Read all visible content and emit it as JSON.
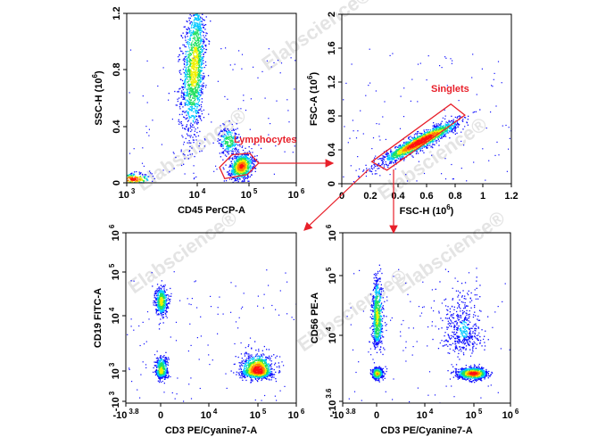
{
  "watermark": "Elabscience®",
  "colors": {
    "gate": "#e8202a",
    "density": [
      "#1010ff",
      "#00c8ff",
      "#20e060",
      "#f0f000",
      "#ff8000",
      "#ff1010"
    ]
  },
  "chart_data": [
    {
      "type": "scatter",
      "xlabel": "CD45 PerCP-A",
      "xlabel_exp": "",
      "xlabel_end": "",
      "ylabel": "SSC-H  (10",
      "ylabel_exp": "6",
      "ylabel_end": ")",
      "xscale": "log",
      "yscale": "linear",
      "xlim": [
        1000,
        1000000
      ],
      "ylim": [
        0,
        1.2
      ],
      "xticks": [
        {
          "value": 1000,
          "base": "10",
          "exp": "3"
        },
        {
          "value": 10000,
          "base": "10",
          "exp": "4"
        },
        {
          "value": 100000,
          "base": "10",
          "exp": "5"
        },
        {
          "value": 1000000,
          "base": "10",
          "exp": "6"
        }
      ],
      "yticks": [
        {
          "value": 0,
          "base": "0",
          "exp": ""
        },
        {
          "value": 0.4,
          "base": "0.4",
          "exp": ""
        },
        {
          "value": 0.8,
          "base": "0.8",
          "exp": ""
        },
        {
          "value": 1.2,
          "base": "1.2",
          "exp": ""
        }
      ],
      "populations": [
        {
          "x": 9000,
          "y": 0.82
        },
        {
          "x": 40000,
          "y": 0.3
        },
        {
          "x": 70000,
          "y": 0.12
        },
        {
          "x": 1200,
          "y": 0.03
        }
      ],
      "gate": {
        "label": "Lymphocytes",
        "polygon": [
          [
            27000,
            0.11
          ],
          [
            47000,
            0.2
          ],
          [
            104000,
            0.21
          ],
          [
            160000,
            0.14
          ],
          [
            93000,
            0.06
          ],
          [
            34000,
            0.03
          ]
        ]
      }
    },
    {
      "type": "scatter",
      "xlabel": "FSC-H  (10",
      "xlabel_exp": "6",
      "xlabel_end": ")",
      "ylabel": "FSC-A  (10",
      "ylabel_exp": "6",
      "ylabel_end": ")",
      "xscale": "linear",
      "yscale": "linear",
      "xlim": [
        0,
        1.2
      ],
      "ylim": [
        0,
        2
      ],
      "xticks": [
        {
          "value": 0,
          "base": "0",
          "exp": ""
        },
        {
          "value": 0.2,
          "base": "0.2",
          "exp": ""
        },
        {
          "value": 0.4,
          "base": "0.4",
          "exp": ""
        },
        {
          "value": 0.6,
          "base": "0.6",
          "exp": ""
        },
        {
          "value": 0.8,
          "base": "0.8",
          "exp": ""
        },
        {
          "value": 1,
          "base": "1",
          "exp": ""
        },
        {
          "value": 1.2,
          "base": "1.2",
          "exp": ""
        }
      ],
      "yticks": [
        {
          "value": 0,
          "base": "0",
          "exp": ""
        },
        {
          "value": 0.4,
          "base": "0.4",
          "exp": ""
        },
        {
          "value": 0.8,
          "base": "0.8",
          "exp": ""
        },
        {
          "value": 1.2,
          "base": "1.2",
          "exp": ""
        },
        {
          "value": 1.6,
          "base": "1.6",
          "exp": ""
        },
        {
          "value": 2,
          "base": "2",
          "exp": ""
        }
      ],
      "populations": [
        {
          "x": 0.55,
          "y": 0.5
        }
      ],
      "gate": {
        "label": "Singlets",
        "polygon": [
          [
            0.21,
            0.26
          ],
          [
            0.77,
            0.94
          ],
          [
            0.87,
            0.81
          ],
          [
            0.32,
            0.16
          ]
        ]
      }
    },
    {
      "type": "scatter",
      "xlabel": "CD3 PE/Cyanine7-A",
      "xlabel_exp": "",
      "xlabel_end": "",
      "ylabel": "CD19 FITC-A",
      "ylabel_exp": "",
      "ylabel_end": "",
      "xscale": "logicle",
      "yscale": "logicle",
      "xlim": [
        -6310,
        1000000
      ],
      "ylim": [
        -1000,
        1000000
      ],
      "xticks": [
        {
          "value": -6310,
          "base": "-10",
          "exp": "3.8"
        },
        {
          "value": 0,
          "base": "0",
          "exp": ""
        },
        {
          "value": 10000,
          "base": "10",
          "exp": "4"
        },
        {
          "value": 100000,
          "base": "10",
          "exp": "5"
        },
        {
          "value": 1000000,
          "base": "10",
          "exp": "6"
        }
      ],
      "yticks": [
        {
          "value": -1000,
          "base": "-10",
          "exp": "3"
        },
        {
          "value": 1000,
          "base": "10",
          "exp": "3"
        },
        {
          "value": 10000,
          "base": "10",
          "exp": "4"
        },
        {
          "value": 100000,
          "base": "10",
          "exp": "5"
        },
        {
          "value": 1000000,
          "base": "10",
          "exp": "6"
        }
      ],
      "populations": [
        {
          "x": 0,
          "y": 22000
        },
        {
          "x": 0,
          "y": 1000
        },
        {
          "x": 100000,
          "y": 1000
        }
      ]
    },
    {
      "type": "scatter",
      "xlabel": "CD3 PE/Cyanine7-A",
      "xlabel_exp": "",
      "xlabel_end": "",
      "ylabel": "CD56 PE-A",
      "ylabel_exp": "",
      "ylabel_end": "",
      "xscale": "logicle",
      "yscale": "logicle",
      "xlim": [
        -6310,
        1000000
      ],
      "ylim": [
        -3981,
        1000000
      ],
      "xticks": [
        {
          "value": -6310,
          "base": "-10",
          "exp": "3.8"
        },
        {
          "value": 0,
          "base": "0",
          "exp": ""
        },
        {
          "value": 10000,
          "base": "10",
          "exp": "4"
        },
        {
          "value": 100000,
          "base": "10",
          "exp": "5"
        },
        {
          "value": 1000000,
          "base": "10",
          "exp": "6"
        }
      ],
      "yticks": [
        {
          "value": -3981,
          "base": "-10",
          "exp": "3.6"
        },
        {
          "value": 10000,
          "base": "10",
          "exp": "4"
        },
        {
          "value": 100000,
          "base": "10",
          "exp": "5"
        },
        {
          "value": 1000000,
          "base": "10",
          "exp": "6"
        }
      ],
      "populations": [
        {
          "x": 0,
          "y": 20000
        },
        {
          "x": 0,
          "y": 0
        },
        {
          "x": 100000,
          "y": 0
        },
        {
          "x": 60000,
          "y": 12000
        }
      ]
    }
  ]
}
